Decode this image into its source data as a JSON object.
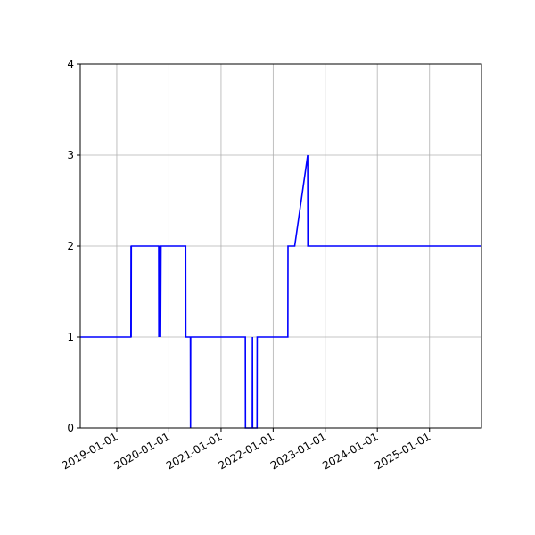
{
  "chart_data": {
    "type": "line",
    "title": "",
    "xlabel": "",
    "ylabel": "",
    "xlim": [
      "2018-04-20",
      "2025-12-31"
    ],
    "ylim": [
      0,
      4
    ],
    "x_ticks": [
      "2019-01-01",
      "2020-01-01",
      "2021-01-01",
      "2022-01-01",
      "2023-01-01",
      "2024-01-01",
      "2025-01-01"
    ],
    "y_ticks": [
      "0",
      "1",
      "2",
      "3",
      "4"
    ],
    "grid": true,
    "legend": "none",
    "series": [
      {
        "color": "#0000ff",
        "points": [
          [
            "2018-04-20",
            1
          ],
          [
            "2019-04-10",
            1
          ],
          [
            "2019-04-11",
            2
          ],
          [
            "2019-04-12",
            1
          ],
          [
            "2019-04-13",
            2
          ],
          [
            "2019-10-22",
            2
          ],
          [
            "2019-10-23",
            1
          ],
          [
            "2019-10-26",
            2
          ],
          [
            "2019-10-28",
            1
          ],
          [
            "2019-11-01",
            2
          ],
          [
            "2019-11-04",
            1
          ],
          [
            "2019-11-07",
            2
          ],
          [
            "2020-04-28",
            2
          ],
          [
            "2020-04-29",
            1
          ],
          [
            "2020-05-31",
            1
          ],
          [
            "2020-06-01",
            0
          ],
          [
            "2020-06-02",
            1
          ],
          [
            "2021-06-20",
            1
          ],
          [
            "2021-06-21",
            0
          ],
          [
            "2021-08-08",
            0
          ],
          [
            "2021-08-09",
            1
          ],
          [
            "2021-08-10",
            0
          ],
          [
            "2021-09-10",
            0
          ],
          [
            "2021-09-11",
            1
          ],
          [
            "2022-04-14",
            1
          ],
          [
            "2022-04-15",
            2
          ],
          [
            "2022-06-01",
            2
          ],
          [
            "2022-08-31",
            3
          ],
          [
            "2022-09-01",
            2
          ],
          [
            "2025-12-31",
            2
          ]
        ]
      }
    ]
  }
}
